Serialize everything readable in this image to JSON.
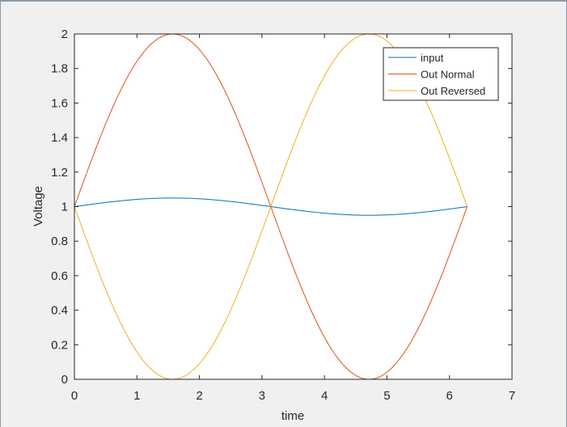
{
  "chart_data": {
    "type": "line",
    "title": "",
    "xlabel": "time",
    "ylabel": "Voltage",
    "xlim": [
      0,
      7
    ],
    "ylim": [
      0,
      2
    ],
    "x_ticks": [
      0,
      1,
      2,
      3,
      4,
      5,
      6,
      7
    ],
    "y_ticks": [
      0,
      0.2,
      0.4,
      0.6,
      0.8,
      1,
      1.2,
      1.4,
      1.6,
      1.8,
      2
    ],
    "x_tick_labels": [
      "0",
      "1",
      "2",
      "3",
      "4",
      "5",
      "6",
      "7"
    ],
    "y_tick_labels": [
      "0",
      "0.2",
      "0.4",
      "0.6",
      "0.8",
      "1",
      "1.2",
      "1.4",
      "1.6",
      "1.8",
      "2"
    ],
    "grid": false,
    "legend_position": "top-right",
    "x_range": [
      0,
      6.2832
    ],
    "series": [
      {
        "name": "input",
        "color": "#0072bd",
        "formula": "1 + 0.05*sin(t)"
      },
      {
        "name": "Out Normal",
        "color": "#d95319",
        "formula": "1 + sin(t)"
      },
      {
        "name": "Out Reversed",
        "color": "#edb120",
        "formula": "1 - sin(t)"
      }
    ]
  }
}
